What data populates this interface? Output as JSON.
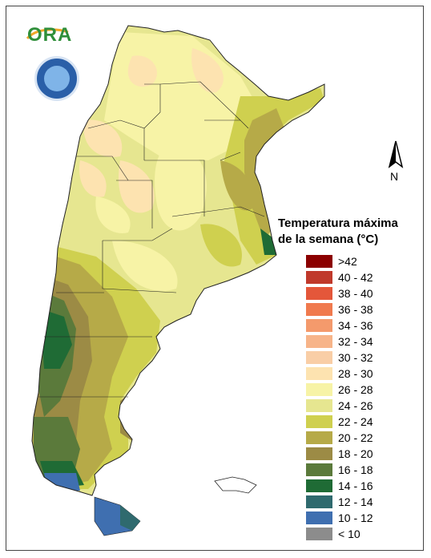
{
  "logo": {
    "text": "ORA"
  },
  "seal": {
    "name": "servicio-meteorologico-nacional-seal"
  },
  "north_arrow": {
    "label": "N"
  },
  "legend": {
    "title_line1": "Temperatura máxima",
    "title_line2": "de la semana (°C)",
    "items": [
      {
        "label": ">42",
        "color": "#8b0000"
      },
      {
        "label": "40 - 42",
        "color": "#c0392b"
      },
      {
        "label": "38 - 40",
        "color": "#e4573a"
      },
      {
        "label": "36 - 38",
        "color": "#f07a4e"
      },
      {
        "label": "34 - 36",
        "color": "#f49a6c"
      },
      {
        "label": "32 - 34",
        "color": "#f7b489"
      },
      {
        "label": "30 - 32",
        "color": "#f9ceA6"
      },
      {
        "label": "28 - 30",
        "color": "#fde3b0"
      },
      {
        "label": "26 - 28",
        "color": "#f7f3a6"
      },
      {
        "label": "24 - 26",
        "color": "#e6e690"
      },
      {
        "label": "22 - 24",
        "color": "#cfd04f"
      },
      {
        "label": "20 - 22",
        "color": "#b6aa48"
      },
      {
        "label": "18 - 20",
        "color": "#9c8b45"
      },
      {
        "label": "16 - 18",
        "color": "#5b7a3b"
      },
      {
        "label": "14 - 16",
        "color": "#1f6b35"
      },
      {
        "label": "12 - 14",
        "color": "#2f6a6e"
      },
      {
        "label": "10 - 12",
        "color": "#3f6fb0"
      },
      {
        "label": "< 10",
        "color": "#8c8c8c"
      }
    ]
  }
}
